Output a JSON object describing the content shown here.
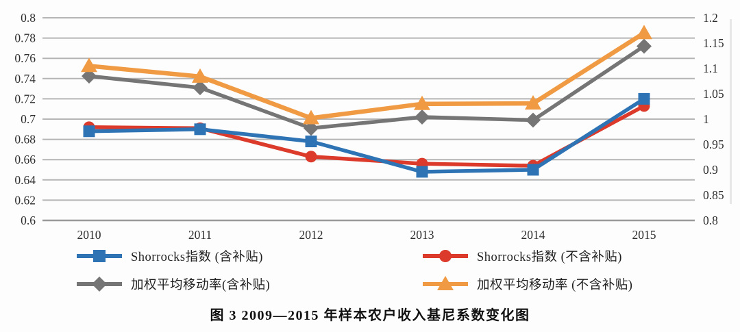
{
  "figure": {
    "caption": "图 3  2009—2015 年样本农户收入基尼系数变化图"
  },
  "chart_data": {
    "type": "line",
    "title": "",
    "xlabel": "",
    "ylabel_left": "",
    "ylabel_right": "",
    "categories": [
      "2010",
      "2011",
      "2012",
      "2013",
      "2014",
      "2015"
    ],
    "series": [
      {
        "name": "Shorrocks指数 (含补贴)",
        "axis": "left",
        "marker": "square",
        "color": "#2E74B5",
        "values": [
          0.688,
          0.69,
          0.678,
          0.648,
          0.65,
          0.72
        ]
      },
      {
        "name": "Shorrocks指数 (不含补贴)",
        "axis": "left",
        "marker": "circle",
        "color": "#DC3A2A",
        "values": [
          0.692,
          0.691,
          0.663,
          0.656,
          0.654,
          0.713
        ]
      },
      {
        "name": "加权平均移动率(含补贴)",
        "axis": "right",
        "marker": "diamond",
        "color": "#757575",
        "values": [
          1.085,
          1.062,
          0.982,
          1.004,
          0.998,
          1.144
        ]
      },
      {
        "name": "加权平均移动率 (不含补贴)",
        "axis": "right",
        "marker": "triangle",
        "color": "#F09B44",
        "values": [
          1.105,
          1.084,
          1.002,
          1.03,
          1.031,
          1.17
        ]
      }
    ],
    "left_axis": {
      "min": 0.6,
      "max": 0.8,
      "tick_labels": [
        "0.8",
        "0.78",
        "0.76",
        "0.74",
        "0.72",
        "0.7",
        "0.68",
        "0.66",
        "0.64",
        "0.62",
        "0.6"
      ]
    },
    "right_axis": {
      "min": 0.8,
      "max": 1.2,
      "tick_labels": [
        "1.2",
        "1.15",
        "1.1",
        "1.05",
        "1",
        "0.95",
        "0.9",
        "0.85",
        "0.8"
      ]
    },
    "grid": true,
    "gridline_color": "#b5b5b5",
    "axis_line_color": "#9a9a9a",
    "legend_position": "bottom"
  }
}
